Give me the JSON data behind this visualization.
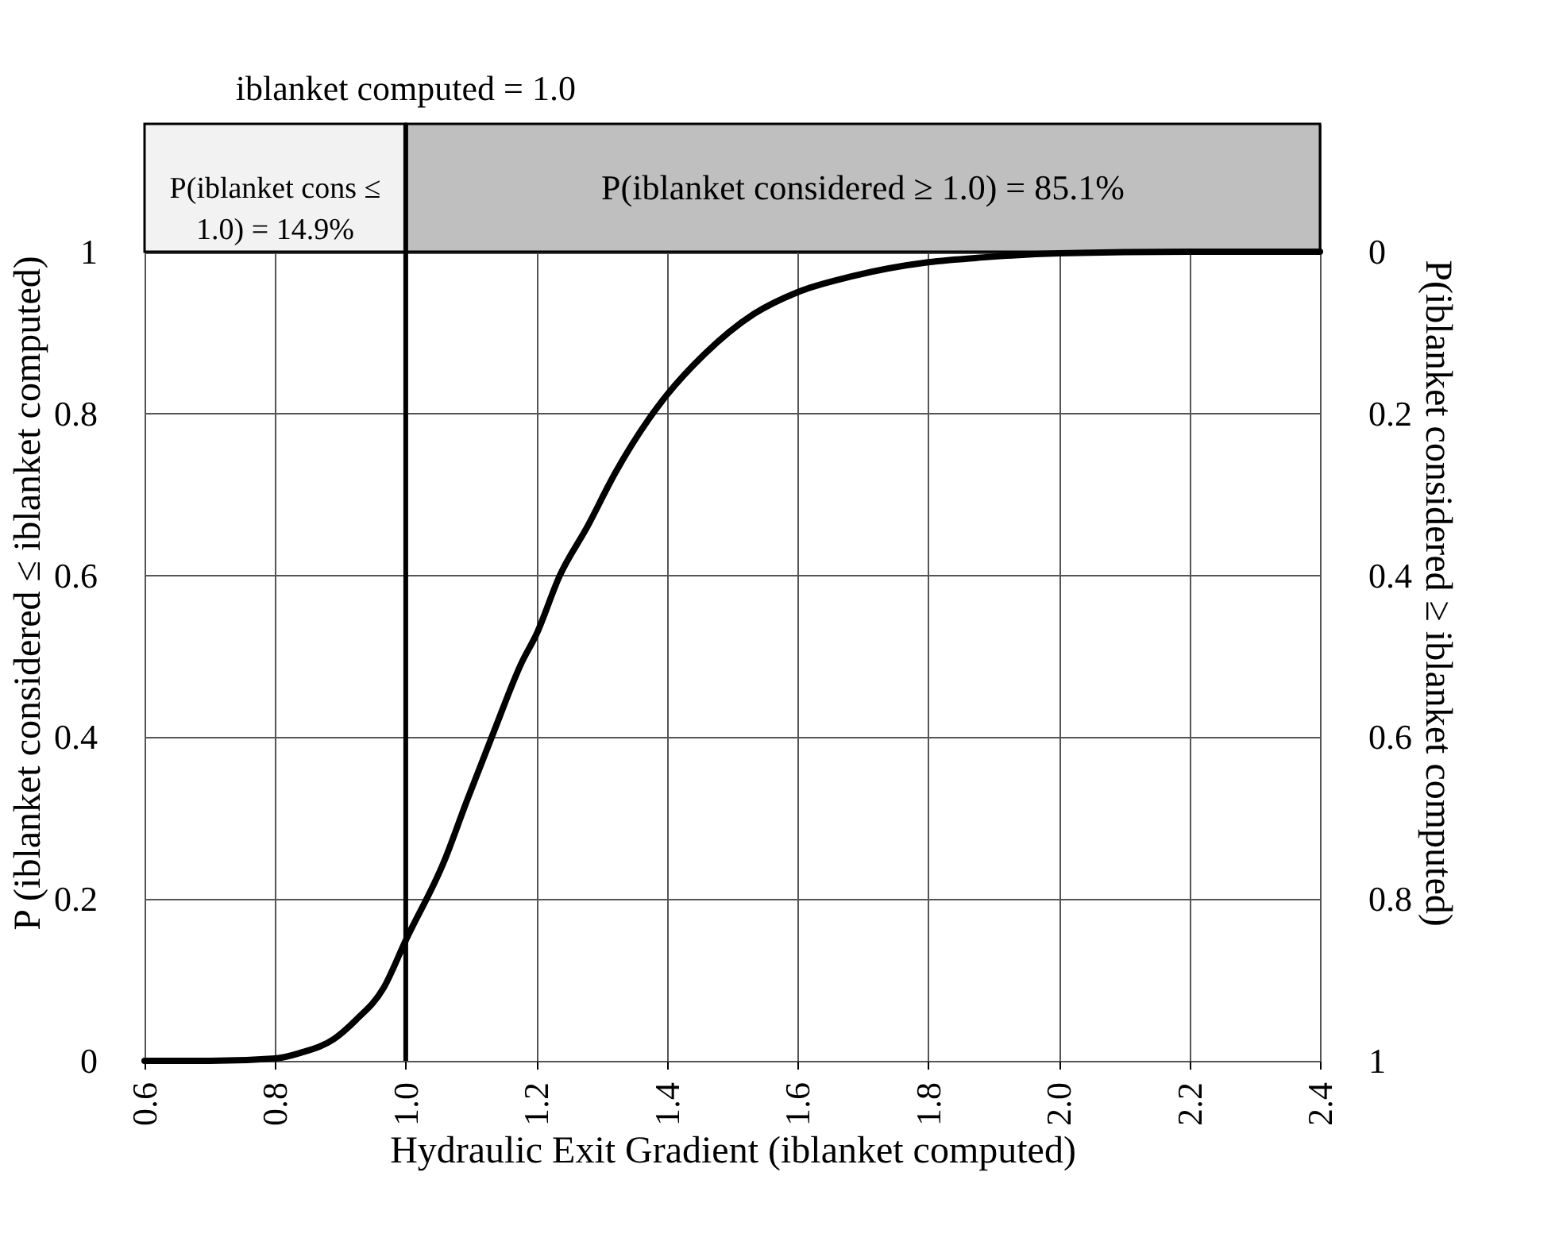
{
  "chart_data": {
    "type": "line",
    "xlabel": "Hydraulic Exit Gradient (iblanket computed)",
    "ylabel": "P (iblanket considered ≤ iblanket computed)",
    "y2label": "P(iblanket considered ≥ iblanket computed)",
    "series": [
      {
        "color": "#000000",
        "x": [
          0.6,
          0.7,
          0.8,
          0.839,
          0.89,
          0.923,
          0.966,
          1.0,
          1.059,
          1.093,
          1.135,
          1.178,
          1.2,
          1.236,
          1.278,
          1.321,
          1.372,
          1.4,
          1.457,
          1.533,
          1.6,
          1.685,
          1.8,
          1.885,
          2.0,
          2.2,
          2.4
        ],
        "values": [
          0,
          0,
          0.003,
          0.01,
          0.027,
          0.05,
          0.09,
          0.149,
          0.247,
          0.32,
          0.407,
          0.493,
          0.527,
          0.6,
          0.66,
          0.727,
          0.793,
          0.823,
          0.873,
          0.923,
          0.95,
          0.97,
          0.987,
          0.993,
          0.998,
          1,
          1
        ]
      }
    ],
    "xlim": [
      0.6,
      2.4
    ],
    "xticks": [
      {
        "value": 0.6,
        "label": "0.6"
      },
      {
        "value": 0.8,
        "label": "0.8"
      },
      {
        "value": 1,
        "label": "1.0"
      },
      {
        "value": 1.2,
        "label": "1.2"
      },
      {
        "value": 1.4,
        "label": "1.4"
      },
      {
        "value": 1.6,
        "label": "1.6"
      },
      {
        "value": 1.8,
        "label": "1.8"
      },
      {
        "value": 2,
        "label": "2.0"
      },
      {
        "value": 2.2,
        "label": "2.2"
      },
      {
        "value": 2.4,
        "label": "2.4"
      }
    ],
    "ylim": [
      0,
      1.158
    ],
    "yticks": [
      0,
      0.2,
      0.4,
      0.6,
      0.8,
      1
    ],
    "y2lim": [
      1,
      -0.158
    ],
    "y2ticks": [
      0,
      0.2,
      0.4,
      0.6,
      0.8,
      1
    ],
    "grid": true,
    "marker": "none",
    "line_style": "solid",
    "ref_lines": [
      {
        "axis": "x",
        "value": 1.0,
        "label": "iblanket computed = 1.0",
        "color": "#000000"
      }
    ],
    "bands": [
      {
        "axis": "x",
        "from": 0.6,
        "to": 1.0,
        "label": "P(iblanket cons ≤ 1.0) = 14.9%",
        "color": "#f2f2f2"
      },
      {
        "axis": "x",
        "from": 1.0,
        "to": 2.4,
        "label": "P(iblanket considered ≥ 1.0) = 85.1%",
        "color": "#bfbfbf"
      }
    ]
  }
}
